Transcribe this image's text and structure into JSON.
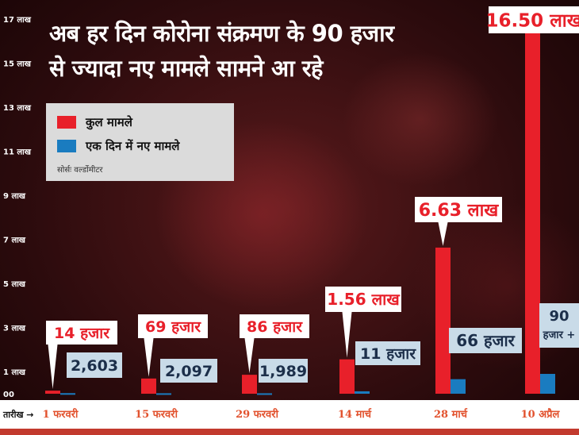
{
  "title_lines": [
    "अब हर दिन कोरोना संक्रमण के 90 हजार",
    "से ज्यादा नए मामले सामने आ रहे"
  ],
  "legend": {
    "total_label": "कुल मामले",
    "new_label": "एक दिन में नए मामले",
    "source": "सोर्सः वर्ल्डोमीटर"
  },
  "x_axis_prefix": "तारीख →",
  "colors": {
    "total": "#e8202a",
    "new": "#1a7cc0",
    "date": "#e2522e",
    "new_label_bg": "#c9dbe8",
    "new_label_text": "#1c2f4a"
  },
  "chart_data": {
    "type": "bar",
    "categories": [
      "1 फरवरी",
      "15 फरवरी",
      "29 फरवरी",
      "14 मार्च",
      "28 मार्च",
      "10 अप्रैल"
    ],
    "ylim": [
      0,
      17
    ],
    "y_ticks": [
      0,
      1,
      3,
      5,
      7,
      9,
      11,
      13,
      15,
      17
    ],
    "y_tick_labels": [
      "00",
      "1 लाख",
      "3 लाख",
      "5 लाख",
      "7 लाख",
      "9 लाख",
      "11 लाख",
      "13 लाख",
      "15 लाख",
      "17 लाख"
    ],
    "series": [
      {
        "name": "कुल मामले",
        "values": [
          0.14,
          0.69,
          0.86,
          1.56,
          6.63,
          16.5
        ],
        "labels": [
          "14 हजार",
          "69 हजार",
          "86 हजार",
          "1.56 लाख",
          "6.63 लाख",
          "16.50 लाख"
        ]
      },
      {
        "name": "एक दिन में नए मामले",
        "values": [
          0.026,
          0.021,
          0.02,
          0.11,
          0.66,
          0.9
        ],
        "labels": [
          "2,603",
          "2,097",
          "1,989",
          "11 हजार",
          "66 हजार",
          "90 हजार +"
        ]
      }
    ]
  }
}
